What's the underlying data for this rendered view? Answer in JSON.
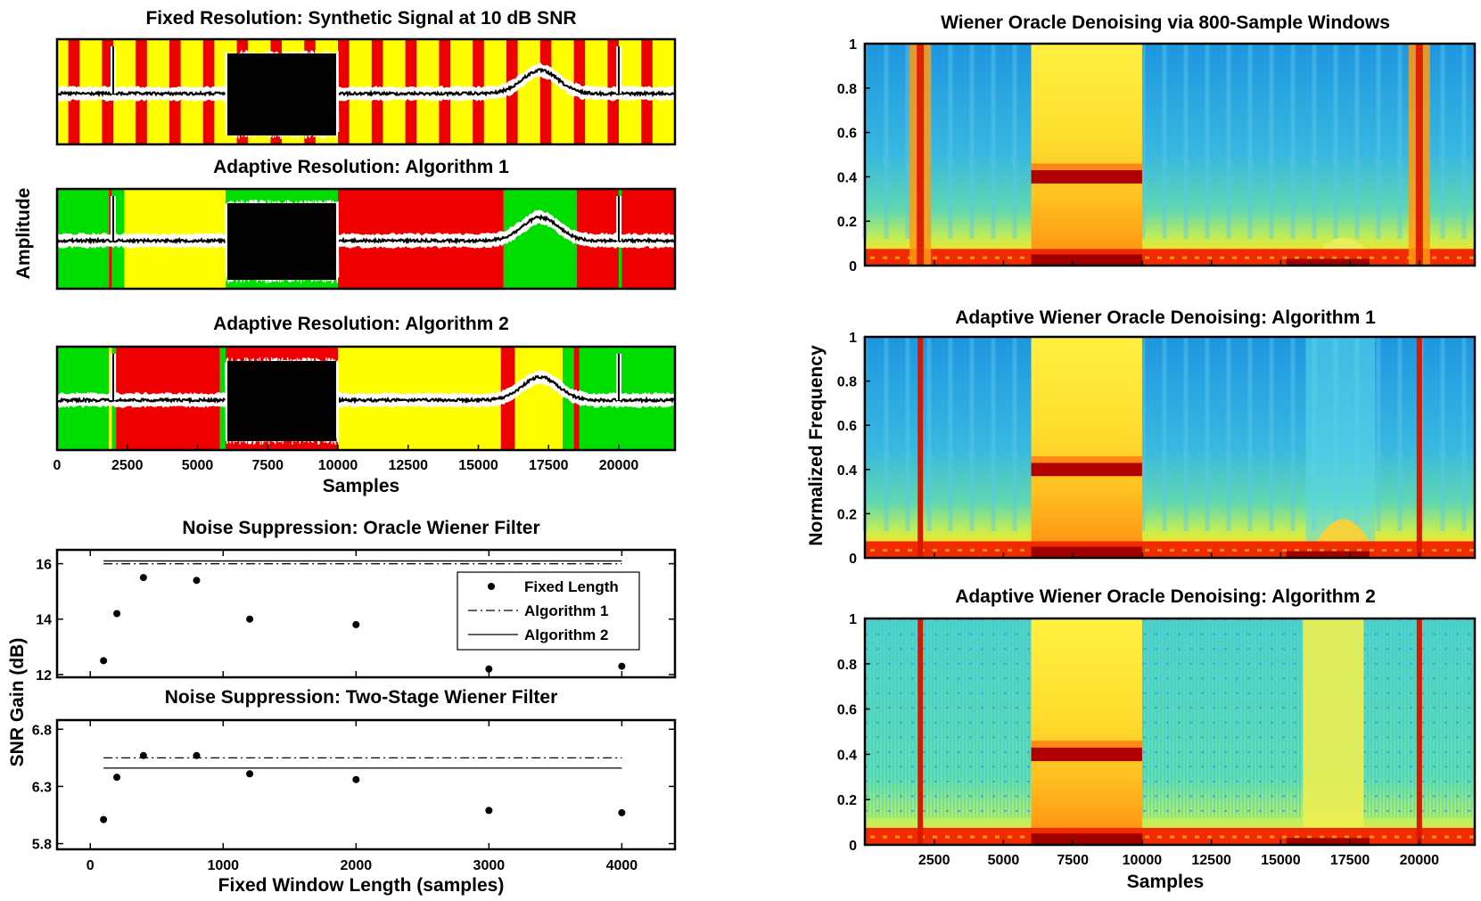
{
  "chart_data": [
    {
      "id": "sig1",
      "type": "segmented-signal",
      "title": "Fixed Resolution: Synthetic Signal at 10 dB SNR",
      "xlim": [
        0,
        22000
      ],
      "segments_note": "colored background bands indicate window size classes (green/yellow/red)",
      "segment_colors": [
        "#00dd00",
        "#ffff00",
        "#ee0000"
      ],
      "fixed_band_width": 400,
      "events": {
        "impulses": [
          2000,
          20000
        ],
        "noise_burst": [
          6000,
          10000
        ],
        "gaussian_bump_center": 17200
      }
    },
    {
      "id": "sig2",
      "type": "segmented-signal",
      "title": "Adaptive Resolution: Algorithm 1",
      "xlim": [
        0,
        22000
      ],
      "segments": [
        {
          "start": 0,
          "end": 1850,
          "color": "green"
        },
        {
          "start": 1850,
          "end": 1950,
          "color": "red"
        },
        {
          "start": 1950,
          "end": 2400,
          "color": "green"
        },
        {
          "start": 2400,
          "end": 6000,
          "color": "yellow"
        },
        {
          "start": 6000,
          "end": 10000,
          "color": "green"
        },
        {
          "start": 10000,
          "end": 15900,
          "color": "red"
        },
        {
          "start": 15900,
          "end": 18500,
          "color": "green"
        },
        {
          "start": 18500,
          "end": 20000,
          "color": "red"
        },
        {
          "start": 20000,
          "end": 20100,
          "color": "green"
        },
        {
          "start": 20100,
          "end": 22000,
          "color": "red"
        }
      ]
    },
    {
      "id": "sig3",
      "type": "segmented-signal",
      "title": "Adaptive Resolution: Algorithm 2",
      "xlim": [
        0,
        22000
      ],
      "xlabel": "Samples",
      "xticks": [
        0,
        2500,
        5000,
        7500,
        10000,
        12500,
        15000,
        17500,
        20000
      ],
      "segments": [
        {
          "start": 0,
          "end": 1850,
          "color": "green"
        },
        {
          "start": 1850,
          "end": 1950,
          "color": "yellow"
        },
        {
          "start": 1950,
          "end": 2100,
          "color": "green"
        },
        {
          "start": 2100,
          "end": 5800,
          "color": "red"
        },
        {
          "start": 5800,
          "end": 6000,
          "color": "green"
        },
        {
          "start": 6000,
          "end": 10000,
          "color": "red"
        },
        {
          "start": 10000,
          "end": 15800,
          "color": "yellow"
        },
        {
          "start": 15800,
          "end": 16300,
          "color": "red"
        },
        {
          "start": 16300,
          "end": 18000,
          "color": "yellow"
        },
        {
          "start": 18000,
          "end": 18400,
          "color": "green"
        },
        {
          "start": 18400,
          "end": 18600,
          "color": "red"
        },
        {
          "start": 18600,
          "end": 22000,
          "color": "green"
        }
      ]
    },
    {
      "id": "gain1",
      "type": "scatter+lines",
      "title": "Noise Suppression: Oracle Wiener Filter",
      "xlim": [
        -250,
        4400
      ],
      "ylim": [
        11.9,
        16.5
      ],
      "yticks": [
        12,
        14,
        16
      ],
      "x": [
        100,
        200,
        400,
        800,
        1200,
        2000,
        3000,
        4000
      ],
      "series": [
        {
          "name": "Fixed Length",
          "style": "dots",
          "values": [
            12.5,
            14.2,
            15.5,
            15.4,
            14.0,
            13.8,
            12.2,
            12.3
          ]
        },
        {
          "name": "Algorithm 1",
          "style": "dash-dot",
          "values": [
            16.0,
            16.0
          ]
        },
        {
          "name": "Algorithm 2",
          "style": "solid",
          "values": [
            16.1,
            16.1
          ]
        }
      ],
      "line_x_range": [
        100,
        4000
      ],
      "legend": {
        "placement": "top-right",
        "entries": [
          "Fixed Length",
          "Algorithm 1",
          "Algorithm 2"
        ]
      }
    },
    {
      "id": "gain2",
      "type": "scatter+lines",
      "title": "Noise Suppression: Two-Stage Wiener Filter",
      "xlim": [
        -250,
        4400
      ],
      "ylim": [
        5.75,
        6.88
      ],
      "yticks": [
        5.8,
        6.3,
        6.8
      ],
      "xticks": [
        0,
        1000,
        2000,
        3000,
        4000
      ],
      "xlabel": "Fixed Window Length (samples)",
      "x": [
        100,
        200,
        400,
        800,
        1200,
        2000,
        3000,
        4000
      ],
      "series": [
        {
          "name": "Fixed Length",
          "style": "dots",
          "values": [
            6.01,
            6.38,
            6.57,
            6.57,
            6.41,
            6.36,
            6.09,
            6.07
          ]
        },
        {
          "name": "Algorithm 1",
          "style": "dash-dot",
          "values": [
            6.55,
            6.55
          ]
        },
        {
          "name": "Algorithm 2",
          "style": "solid",
          "values": [
            6.46,
            6.46
          ]
        }
      ],
      "line_x_range": [
        100,
        4000
      ]
    },
    {
      "id": "spec1",
      "type": "heatmap",
      "title": "Wiener Oracle Denoising via 800-Sample Windows",
      "xlim": [
        0,
        22000
      ],
      "ylim": [
        0,
        1
      ],
      "yticks": [
        0,
        0.2,
        0.4,
        0.6,
        0.8,
        1
      ]
    },
    {
      "id": "spec2",
      "type": "heatmap",
      "title": "Adaptive Wiener Oracle Denoising: Algorithm 1",
      "xlim": [
        0,
        22000
      ],
      "ylim": [
        0,
        1
      ],
      "yticks": [
        0,
        0.2,
        0.4,
        0.6,
        0.8,
        1
      ]
    },
    {
      "id": "spec3",
      "type": "heatmap",
      "title": "Adaptive Wiener Oracle Denoising: Algorithm 2",
      "xlim": [
        0,
        22000
      ],
      "ylim": [
        0,
        1
      ],
      "yticks": [
        0,
        0.2,
        0.4,
        0.6,
        0.8,
        1
      ],
      "xticks": [
        2500,
        5000,
        7500,
        10000,
        12500,
        15000,
        17500,
        20000
      ],
      "xlabel": "Samples"
    }
  ],
  "shared_labels": {
    "left_amplitude": "Amplitude",
    "left_snr": "SNR Gain (dB)",
    "right_freq": "Normalized Frequency"
  },
  "colors": {
    "green": "#00dd00",
    "yellow": "#ffff00",
    "red": "#ee0000",
    "spec_blue": "#2aa6e8",
    "spec_cyan": "#4fd4d0",
    "spec_yellow": "#ffee30",
    "spec_orange": "#ff9a10",
    "spec_red": "#e02000",
    "spec_darkred": "#a00000"
  }
}
